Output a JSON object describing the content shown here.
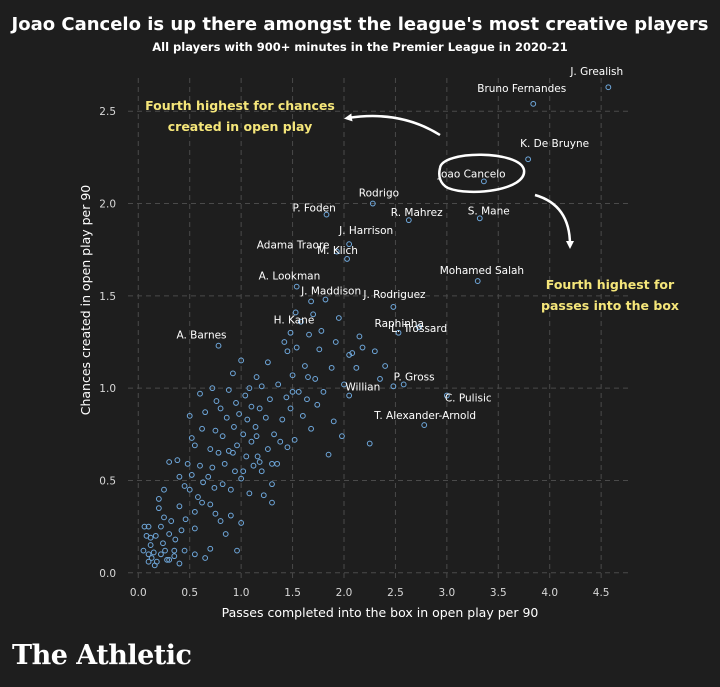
{
  "title": "Joao Cancelo is up there amongst the league's most creative players",
  "subtitle": "All players with 900+ minutes in the Premier League in 2020-21",
  "brand": "The Athletic",
  "colors": {
    "background": "#1e1e1e",
    "marker": "#6fa8dc",
    "annotation": "#f5e67a",
    "text": "#ffffff"
  },
  "annotations": {
    "chances_line1": "Fourth highest for chances",
    "chances_line2": "created in open play",
    "passes_line1": "Fourth highest for",
    "passes_line2": "passes into the box"
  },
  "chart_data": {
    "type": "scatter",
    "xlabel": "Passes completed into the box in open play per 90",
    "ylabel": "Chances created in open play per 90",
    "xlim": [
      -0.1,
      4.8
    ],
    "ylim": [
      -0.05,
      2.68
    ],
    "xticks": [
      "0.0",
      "0.5",
      "1.0",
      "1.5",
      "2.0",
      "2.5",
      "3.0",
      "3.5",
      "4.0",
      "4.5"
    ],
    "yticks": [
      "0.0",
      "0.5",
      "1.0",
      "1.5",
      "2.0",
      "2.5"
    ],
    "grid": true,
    "labeled_points": [
      {
        "name": "J. Grealish",
        "x": 4.57,
        "y": 2.63
      },
      {
        "name": "Bruno Fernandes",
        "x": 3.84,
        "y": 2.54
      },
      {
        "name": "K. De Bruyne",
        "x": 3.79,
        "y": 2.24
      },
      {
        "name": "Joao Cancelo",
        "x": 3.36,
        "y": 2.12
      },
      {
        "name": "Rodrigo",
        "x": 2.28,
        "y": 2.0
      },
      {
        "name": "R. Mahrez",
        "x": 2.63,
        "y": 1.91
      },
      {
        "name": "S. Mane",
        "x": 3.32,
        "y": 1.92
      },
      {
        "name": "P. Foden",
        "x": 1.83,
        "y": 1.94
      },
      {
        "name": "J. Harrison",
        "x": 2.05,
        "y": 1.78
      },
      {
        "name": "Adama Traore",
        "x": 1.93,
        "y": 1.74
      },
      {
        "name": "M. Klich",
        "x": 2.03,
        "y": 1.7
      },
      {
        "name": "Mohamed Salah",
        "x": 3.3,
        "y": 1.58
      },
      {
        "name": "A. Lookman",
        "x": 1.54,
        "y": 1.55
      },
      {
        "name": "J. Maddison",
        "x": 1.68,
        "y": 1.47
      },
      {
        "name": "J. Rodriguez",
        "x": 2.48,
        "y": 1.44
      },
      {
        "name": "H. Kane",
        "x": 1.53,
        "y": 1.41
      },
      {
        "name": "Raphinha",
        "x": 2.53,
        "y": 1.3
      },
      {
        "name": "L. Trossard",
        "x": 2.73,
        "y": 1.33
      },
      {
        "name": "A. Barnes",
        "x": 0.78,
        "y": 1.23
      },
      {
        "name": "P. Gross",
        "x": 2.58,
        "y": 1.02
      },
      {
        "name": "Willian",
        "x": 2.48,
        "y": 1.01
      },
      {
        "name": "C. Pulisic",
        "x": 3.0,
        "y": 0.96
      },
      {
        "name": "T. Alexander-Arnold",
        "x": 2.78,
        "y": 0.8
      }
    ],
    "other_points": [
      [
        0.05,
        0.12
      ],
      [
        0.08,
        0.2
      ],
      [
        0.1,
        0.25
      ],
      [
        0.12,
        0.15
      ],
      [
        0.1,
        0.06
      ],
      [
        0.13,
        0.08
      ],
      [
        0.15,
        0.11
      ],
      [
        0.17,
        0.2
      ],
      [
        0.2,
        0.35
      ],
      [
        0.2,
        0.4
      ],
      [
        0.22,
        0.1
      ],
      [
        0.24,
        0.16
      ],
      [
        0.25,
        0.3
      ],
      [
        0.28,
        0.07
      ],
      [
        0.3,
        0.21
      ],
      [
        0.3,
        0.6
      ],
      [
        0.32,
        0.28
      ],
      [
        0.35,
        0.12
      ],
      [
        0.36,
        0.18
      ],
      [
        0.38,
        0.61
      ],
      [
        0.4,
        0.36
      ],
      [
        0.4,
        0.05
      ],
      [
        0.42,
        0.23
      ],
      [
        0.45,
        0.47
      ],
      [
        0.46,
        0.29
      ],
      [
        0.48,
        0.59
      ],
      [
        0.5,
        0.85
      ],
      [
        0.5,
        0.45
      ],
      [
        0.52,
        0.53
      ],
      [
        0.52,
        0.73
      ],
      [
        0.55,
        0.33
      ],
      [
        0.55,
        0.69
      ],
      [
        0.55,
        0.24
      ],
      [
        0.58,
        0.41
      ],
      [
        0.6,
        0.97
      ],
      [
        0.6,
        0.58
      ],
      [
        0.62,
        0.78
      ],
      [
        0.63,
        0.49
      ],
      [
        0.65,
        0.08
      ],
      [
        0.65,
        0.87
      ],
      [
        0.68,
        0.52
      ],
      [
        0.7,
        0.67
      ],
      [
        0.7,
        0.37
      ],
      [
        0.72,
        1.0
      ],
      [
        0.72,
        0.57
      ],
      [
        0.74,
        0.46
      ],
      [
        0.75,
        0.77
      ],
      [
        0.76,
        0.93
      ],
      [
        0.78,
        0.65
      ],
      [
        0.8,
        0.28
      ],
      [
        0.8,
        0.89
      ],
      [
        0.82,
        0.48
      ],
      [
        0.82,
        0.74
      ],
      [
        0.84,
        0.59
      ],
      [
        0.85,
        0.21
      ],
      [
        0.86,
        0.84
      ],
      [
        0.88,
        0.99
      ],
      [
        0.88,
        0.66
      ],
      [
        0.9,
        0.45
      ],
      [
        0.9,
        0.31
      ],
      [
        0.92,
        1.08
      ],
      [
        0.93,
        0.79
      ],
      [
        0.94,
        0.55
      ],
      [
        0.95,
        0.92
      ],
      [
        0.96,
        0.12
      ],
      [
        0.96,
        0.69
      ],
      [
        0.98,
        0.86
      ],
      [
        1.0,
        1.15
      ],
      [
        1.0,
        0.51
      ],
      [
        1.0,
        0.27
      ],
      [
        1.02,
        0.75
      ],
      [
        1.04,
        0.96
      ],
      [
        1.05,
        0.63
      ],
      [
        1.06,
        0.83
      ],
      [
        1.08,
        1.0
      ],
      [
        1.08,
        0.43
      ],
      [
        1.1,
        0.71
      ],
      [
        1.1,
        0.9
      ],
      [
        1.12,
        0.58
      ],
      [
        1.14,
        0.79
      ],
      [
        1.15,
        1.06
      ],
      [
        1.16,
        0.63
      ],
      [
        1.18,
        0.89
      ],
      [
        1.2,
        0.55
      ],
      [
        1.2,
        1.01
      ],
      [
        1.22,
        0.42
      ],
      [
        1.24,
        0.84
      ],
      [
        1.26,
        1.14
      ],
      [
        1.26,
        0.67
      ],
      [
        1.28,
        0.94
      ],
      [
        1.3,
        0.59
      ],
      [
        1.3,
        0.38
      ],
      [
        1.32,
        0.75
      ],
      [
        1.35,
        0.59
      ],
      [
        1.36,
        1.02
      ],
      [
        1.38,
        0.71
      ],
      [
        1.4,
        0.83
      ],
      [
        1.42,
        1.25
      ],
      [
        1.44,
        0.95
      ],
      [
        1.45,
        0.68
      ],
      [
        1.48,
        1.3
      ],
      [
        1.48,
        0.89
      ],
      [
        1.5,
        1.07
      ],
      [
        1.52,
        0.72
      ],
      [
        1.54,
        1.22
      ],
      [
        1.56,
        0.98
      ],
      [
        1.58,
        1.36
      ],
      [
        1.6,
        0.85
      ],
      [
        1.62,
        1.12
      ],
      [
        1.64,
        0.94
      ],
      [
        1.66,
        1.29
      ],
      [
        1.68,
        0.78
      ],
      [
        1.7,
        1.4
      ],
      [
        1.72,
        1.05
      ],
      [
        1.74,
        0.91
      ],
      [
        1.76,
        1.21
      ],
      [
        1.78,
        1.31
      ],
      [
        1.8,
        0.98
      ],
      [
        1.82,
        1.48
      ],
      [
        1.85,
        0.64
      ],
      [
        1.88,
        1.11
      ],
      [
        1.92,
        1.25
      ],
      [
        1.95,
        1.38
      ],
      [
        1.98,
        0.74
      ],
      [
        2.0,
        1.02
      ],
      [
        2.05,
        0.96
      ],
      [
        2.08,
        1.19
      ],
      [
        2.12,
        1.11
      ],
      [
        2.15,
        1.28
      ],
      [
        2.18,
        1.22
      ],
      [
        2.25,
        0.7
      ],
      [
        2.3,
        1.2
      ],
      [
        2.35,
        1.05
      ],
      [
        2.4,
        1.12
      ],
      [
        1.15,
        0.74
      ],
      [
        0.25,
        0.45
      ],
      [
        0.45,
        0.12
      ],
      [
        0.62,
        0.38
      ],
      [
        0.7,
        0.13
      ],
      [
        0.3,
        0.07
      ],
      [
        0.18,
        0.06
      ],
      [
        0.22,
        0.25
      ],
      [
        0.35,
        0.09
      ],
      [
        0.4,
        0.52
      ],
      [
        0.55,
        0.1
      ],
      [
        0.75,
        0.32
      ],
      [
        0.92,
        0.65
      ],
      [
        1.02,
        0.55
      ],
      [
        1.18,
        0.6
      ],
      [
        1.3,
        0.48
      ],
      [
        1.5,
        0.98
      ],
      [
        1.9,
        0.82
      ],
      [
        2.05,
        1.18
      ],
      [
        1.65,
        1.06
      ],
      [
        1.45,
        1.2
      ],
      [
        0.16,
        0.04
      ],
      [
        0.1,
        0.1
      ],
      [
        0.12,
        0.19
      ],
      [
        0.26,
        0.12
      ],
      [
        0.06,
        0.25
      ]
    ]
  }
}
